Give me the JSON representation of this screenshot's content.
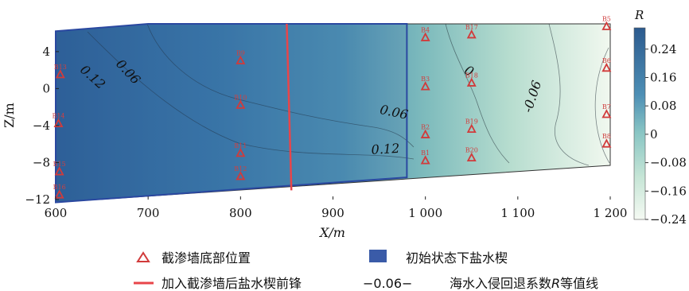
{
  "chart_data": {
    "type": "heatmap",
    "title": "",
    "xlabel": "X/m",
    "ylabel": "Z/m",
    "xlim": [
      600,
      1200
    ],
    "ylim": [
      -12,
      7
    ],
    "x_ticks": [
      "600",
      "700",
      "800",
      "900",
      "1 000",
      "1 100",
      "1 200"
    ],
    "x_tick_values": [
      600,
      700,
      800,
      900,
      1000,
      1100,
      1200
    ],
    "y_ticks": [
      "4",
      "0",
      "−4",
      "−8",
      "−12"
    ],
    "y_tick_values": [
      4,
      0,
      -4,
      -8,
      -12
    ],
    "colorbar": {
      "title": "R",
      "ticks": [
        "0.24",
        "0.16",
        "0.08",
        "0",
        "−0.08",
        "−0.16",
        "−0.24"
      ],
      "tick_values": [
        0.24,
        0.16,
        0.08,
        0,
        -0.08,
        -0.16,
        -0.24
      ],
      "range": [
        -0.24,
        0.3
      ],
      "color_high": "#2c5a8e",
      "color_mid": "#9fd2c7",
      "color_low": "#f4f9f2"
    },
    "contour_labels": [
      {
        "text": "0.12",
        "x": 637,
        "z": 0.9,
        "rot": 42
      },
      {
        "text": "0.06",
        "x": 675,
        "z": 1.5,
        "rot": 47
      },
      {
        "text": "0.06",
        "x": 965,
        "z": -3.0,
        "rot": 12
      },
      {
        "text": "0.12",
        "x": 957,
        "z": -7.0,
        "rot": -3
      },
      {
        "text": "0",
        "x": 1045,
        "z": 1.5,
        "rot": 30
      },
      {
        "text": "-0.06",
        "x": 1120,
        "z": -1.0,
        "rot": -72
      }
    ],
    "wells": [
      {
        "label": "B13",
        "x": 605,
        "z": 1.5
      },
      {
        "label": "B14",
        "x": 603,
        "z": -3.8
      },
      {
        "label": "B15",
        "x": 604,
        "z": -9.0
      },
      {
        "label": "B16",
        "x": 604,
        "z": -11.5
      },
      {
        "label": "B9",
        "x": 800,
        "z": 3.0
      },
      {
        "label": "B10",
        "x": 800,
        "z": -1.8
      },
      {
        "label": "B11",
        "x": 800,
        "z": -7.0
      },
      {
        "label": "B12",
        "x": 800,
        "z": -9.5
      },
      {
        "label": "B4",
        "x": 1000,
        "z": 5.5
      },
      {
        "label": "B3",
        "x": 1000,
        "z": 0.2
      },
      {
        "label": "B2",
        "x": 1000,
        "z": -5.0
      },
      {
        "label": "B1",
        "x": 1000,
        "z": -7.8
      },
      {
        "label": "B17",
        "x": 1050,
        "z": 5.8
      },
      {
        "label": "B18",
        "x": 1050,
        "z": 0.6
      },
      {
        "label": "B19",
        "x": 1050,
        "z": -4.4
      },
      {
        "label": "B20",
        "x": 1050,
        "z": -7.5
      },
      {
        "label": "B5",
        "x": 1196,
        "z": 6.7
      },
      {
        "label": "B6",
        "x": 1196,
        "z": 2.2
      },
      {
        "label": "B7",
        "x": 1196,
        "z": -2.8
      },
      {
        "label": "B8",
        "x": 1196,
        "z": -6.0
      }
    ],
    "initial_wedge_polygon": [
      [
        600,
        6.2
      ],
      [
        700,
        7.0
      ],
      [
        980,
        7.0
      ],
      [
        980,
        -9.6
      ],
      [
        600,
        -12.3
      ]
    ],
    "wedge_front_after_wall": [
      [
        850,
        7.0
      ],
      [
        855,
        -11.0
      ]
    ],
    "domain_polygon": [
      [
        600,
        6.2
      ],
      [
        700,
        7.0
      ],
      [
        1200,
        7.0
      ],
      [
        1200,
        -8.3
      ],
      [
        600,
        -12.3
      ]
    ]
  },
  "legend": {
    "wall_bottom": "截渗墙底部位置",
    "initial_wedge": "初始状态下盐水楔",
    "front_after_wall": "加入截渗墙后盐水楔前锋",
    "contour_sample": "−0.06−",
    "contour_desc_pre": "海水入侵回退系数",
    "contour_desc_sym": "R",
    "contour_desc_post": "等值线"
  },
  "colors": {
    "marker": "#d13b3b",
    "front_line": "#e8454a",
    "wedge_fill": "#3a63a8",
    "wedge_edge": "#2a48a0"
  }
}
